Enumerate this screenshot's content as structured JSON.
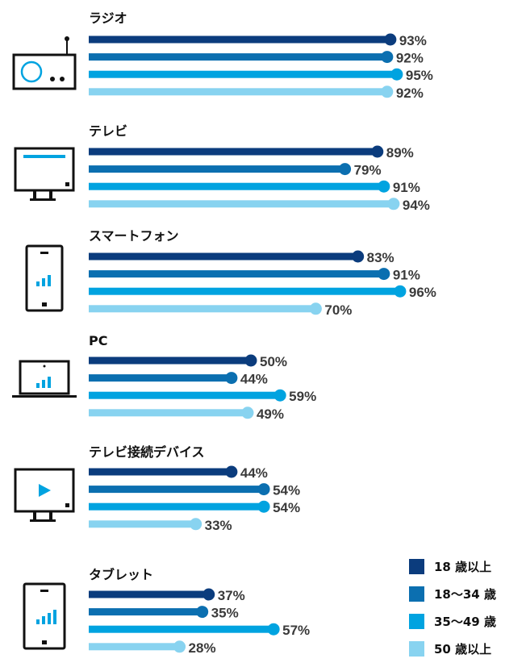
{
  "chart_data": {
    "type": "bar",
    "orientation": "horizontal",
    "grid": false,
    "legend_position": "bottom-right",
    "unit": "%",
    "categories": [
      "ラジオ",
      "テレビ",
      "スマートフォン",
      "PC",
      "テレビ接続デバイス",
      "タブレット"
    ],
    "icons": [
      "radio-icon",
      "tv-icon",
      "smartphone-icon",
      "laptop-icon",
      "tv-connected-device-icon",
      "tablet-icon"
    ],
    "series": [
      {
        "name": "18 歳以上",
        "color": "#0b3c7d",
        "values": [
          93,
          89,
          83,
          50,
          44,
          37
        ]
      },
      {
        "name": "18〜34 歳",
        "color": "#0b6fb0",
        "values": [
          92,
          79,
          91,
          44,
          54,
          35
        ]
      },
      {
        "name": "35〜49 歳",
        "color": "#00a3e0",
        "values": [
          95,
          91,
          96,
          59,
          54,
          57
        ]
      },
      {
        "name": "50 歳以上",
        "color": "#88d3f0",
        "values": [
          92,
          94,
          70,
          49,
          33,
          28
        ]
      }
    ],
    "value_labels": [
      [
        "93%",
        "92%",
        "95%",
        "92%"
      ],
      [
        "89%",
        "79%",
        "91%",
        "94%"
      ],
      [
        "83%",
        "91%",
        "96%",
        "70%"
      ],
      [
        "50%",
        "44%",
        "59%",
        "49%"
      ],
      [
        "44%",
        "54%",
        "54%",
        "33%"
      ],
      [
        "37%",
        "35%",
        "57%",
        "28%"
      ]
    ],
    "xlim": [
      0,
      100
    ]
  },
  "legend": {
    "items": [
      {
        "label": "18 歳以上",
        "color": "#0b3c7d"
      },
      {
        "label": "18〜34 歳",
        "color": "#0b6fb0"
      },
      {
        "label": "35〜49 歳",
        "color": "#00a3e0"
      },
      {
        "label": "50 歳以上",
        "color": "#88d3f0"
      }
    ]
  }
}
